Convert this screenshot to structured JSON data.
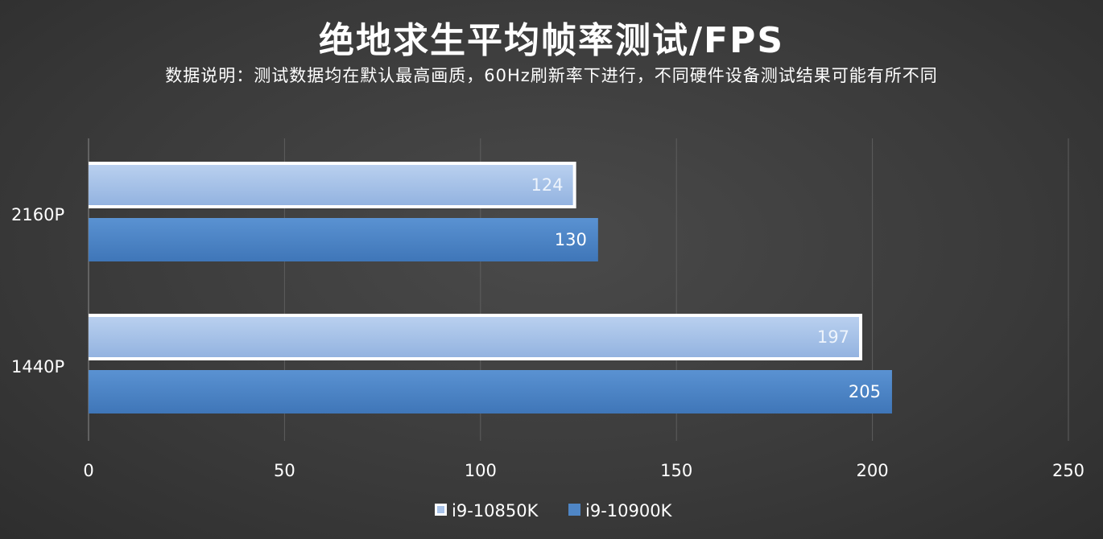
{
  "chart_data": {
    "type": "bar",
    "orientation": "horizontal",
    "title": "绝地求生平均帧率测试/FPS",
    "subtitle": "数据说明：测试数据均在默认最高画质，60Hz刷新率下进行，不同硬件设备测试结果可能有所不同",
    "categories": [
      "2160P",
      "1440P"
    ],
    "series": [
      {
        "name": "i9-10850K",
        "values": [
          124,
          197
        ],
        "color": "#a9c3e8"
      },
      {
        "name": "i9-10900K",
        "values": [
          130,
          205
        ],
        "color": "#4f86c6"
      }
    ],
    "xlim": [
      0,
      250
    ],
    "xticks": [
      0,
      50,
      100,
      150,
      200,
      250
    ],
    "grid": true,
    "legend": "bottom"
  }
}
